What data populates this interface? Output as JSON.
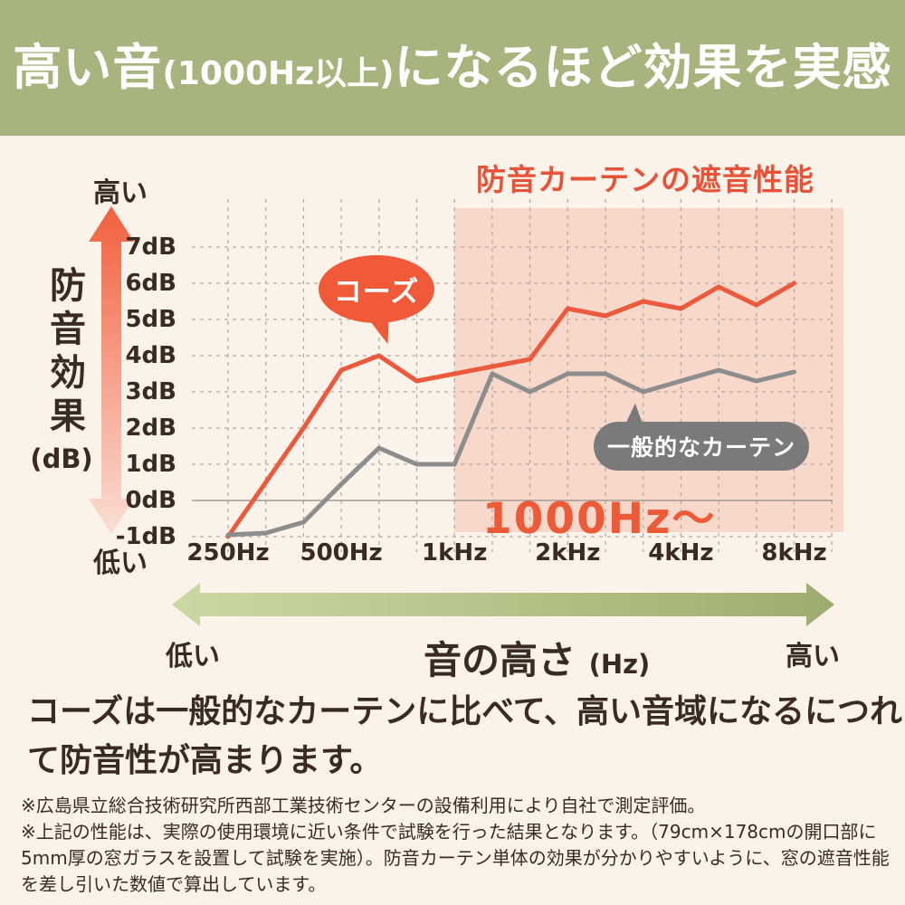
{
  "banner": {
    "highlight": "高い音",
    "paren": "(1000Hz以上)",
    "rest": "になるほど効果を実感"
  },
  "chart": {
    "title": "防音カーテンの遮音性能",
    "y_axis": {
      "top_label": "高い",
      "bottom_label": "低い",
      "name_vertical": "防音効果",
      "unit": "(dB)",
      "tick_labels": [
        "7dB",
        "6dB",
        "5dB",
        "4dB",
        "3dB",
        "2dB",
        "1dB",
        "0dB",
        "-1dB"
      ]
    },
    "x_axis": {
      "tick_labels": [
        "250Hz",
        "500Hz",
        "1kHz",
        "2kHz",
        "4kHz",
        "8kHz"
      ]
    },
    "series_labels": {
      "koze": "コーズ",
      "general": "一般的なカーテン"
    },
    "region_label": "1000Hz〜"
  },
  "chart_data": {
    "type": "line",
    "x": [
      250,
      315,
      400,
      500,
      630,
      800,
      1000,
      1250,
      1600,
      2000,
      2500,
      3150,
      4000,
      5000,
      6300,
      8000
    ],
    "x_scale": "log-1/3-octave",
    "x_tick_indices": [
      0,
      3,
      6,
      9,
      12,
      15
    ],
    "x_tick_labels_shown": [
      "250Hz",
      "500Hz",
      "1kHz",
      "2kHz",
      "4kHz",
      "8kHz"
    ],
    "y_ticks": [
      7,
      6,
      5,
      4,
      3,
      2,
      1,
      0,
      -1
    ],
    "ylim": [
      -1,
      7
    ],
    "grid": true,
    "title": "防音カーテンの遮音性能",
    "ylabel": "防音効果 (dB)",
    "xlabel": "音の高さ (Hz)",
    "legend": "in-chart speech bubbles",
    "highlight_region": {
      "from_hz": 1000,
      "label": "1000Hz〜"
    },
    "series": [
      {
        "name": "コーズ",
        "color": "#eb5a3c",
        "values": [
          -1.0,
          0.5,
          2.0,
          3.6,
          4.0,
          3.3,
          3.5,
          3.7,
          3.9,
          5.3,
          5.1,
          5.5,
          5.3,
          5.9,
          5.4,
          6.0
        ]
      },
      {
        "name": "一般的なカーテン",
        "color": "#8d8d8d",
        "values": [
          -0.95,
          -0.9,
          -0.6,
          0.45,
          1.45,
          1.0,
          1.0,
          3.5,
          3.0,
          3.5,
          3.5,
          3.0,
          3.3,
          3.6,
          3.3,
          3.55
        ]
      }
    ]
  },
  "freq_axis": {
    "left_label": "低い",
    "center_label": "音の高さ",
    "center_unit": "(Hz)",
    "right_label": "高い"
  },
  "body_text": {
    "lines": [
      "コーズは一般的なカーテンに比べて、高い音域になるにつれ",
      "て防音性が高まります。"
    ]
  },
  "footnotes": {
    "lines": [
      "※広島県立総合技術研究所西部工業技術センターの設備利用により自社で測定評価。",
      "※上記の性能は、実際の使用環境に近い条件で試験を行った結果となります。（79cm×178cmの開口部に",
      "5mm厚の窓ガラスを設置して試験を実施）。防音カーテン単体の効果が分かりやすいように、窓の遮音性能",
      "を差し引いた数値で算出しています。"
    ]
  },
  "colors": {
    "background": "#fbf2ea",
    "banner": "#a8b47d",
    "banner_text": "#ffffff",
    "title_red": "#e65339",
    "line_red": "#eb5a3c",
    "line_gray": "#8d8d8d",
    "bubble_red": "#f15a38",
    "bubble_gray": "#7a7a7a",
    "region_pink": "#f8d8cb",
    "region_label_red": "#ed5a38",
    "grid": "#b3aba3",
    "zero_line": "#a29a92",
    "text_dark": "#3a2b22",
    "left_arrow_top": "#f2603d",
    "left_arrow_bottom": "#fbded5",
    "green_arrow_left": "#ccd8a3",
    "green_arrow_right": "#9dac6e"
  }
}
